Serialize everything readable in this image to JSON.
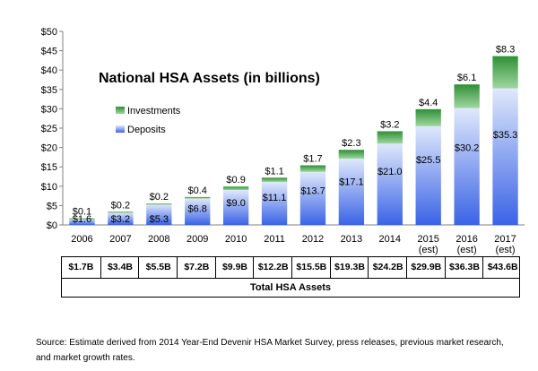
{
  "chart_data": {
    "type": "bar",
    "stacked": true,
    "title": "National HSA Assets (in billions)",
    "categories": [
      "2006",
      "2007",
      "2008",
      "2009",
      "2010",
      "2011",
      "2012",
      "2013",
      "2014",
      "2015\n(est)",
      "2016\n(est)",
      "2017\n(est)"
    ],
    "series": [
      {
        "name": "Deposits",
        "color": "#3b66e8",
        "values": [
          1.6,
          3.2,
          5.3,
          6.8,
          9.0,
          11.1,
          13.7,
          17.1,
          21.0,
          25.5,
          30.2,
          35.3
        ],
        "labels": [
          "$1.6",
          "$3.2",
          "$5.3",
          "$6.8",
          "$9.0",
          "$11.1",
          "$13.7",
          "$17.1",
          "$21.0",
          "$25.5",
          "$30.2",
          "$35.3"
        ]
      },
      {
        "name": "Investments",
        "color": "#2e9a3a",
        "values": [
          0.1,
          0.2,
          0.2,
          0.4,
          0.9,
          1.1,
          1.7,
          2.3,
          3.2,
          4.4,
          6.1,
          8.3
        ],
        "labels": [
          "$0.1",
          "$0.2",
          "$0.2",
          "$0.4",
          "$0.9",
          "$1.1",
          "$1.7",
          "$2.3",
          "$3.2",
          "$4.4",
          "$6.1",
          "$8.3"
        ]
      }
    ],
    "yticks": [
      "$0",
      "$5",
      "$10",
      "$15",
      "$20",
      "$25",
      "$30",
      "$35",
      "$40",
      "$45",
      "$50"
    ],
    "ylim": [
      0,
      50
    ],
    "legend": [
      "Investments",
      "Deposits"
    ],
    "legend_position": "top-left",
    "grid": false,
    "xlabel": "",
    "ylabel": ""
  },
  "totals": {
    "values": [
      "$1.7B",
      "$3.4B",
      "$5.5B",
      "$7.2B",
      "$9.9B",
      "$12.2B",
      "$15.5B",
      "$19.3B",
      "$24.2B",
      "$29.9B",
      "$36.3B",
      "$43.6B"
    ],
    "label": "Total HSA Assets"
  },
  "source": "Source: Estimate derived from 2014 Year-End Devenir HSA Market Survey, press releases, previous market research, and market growth rates."
}
